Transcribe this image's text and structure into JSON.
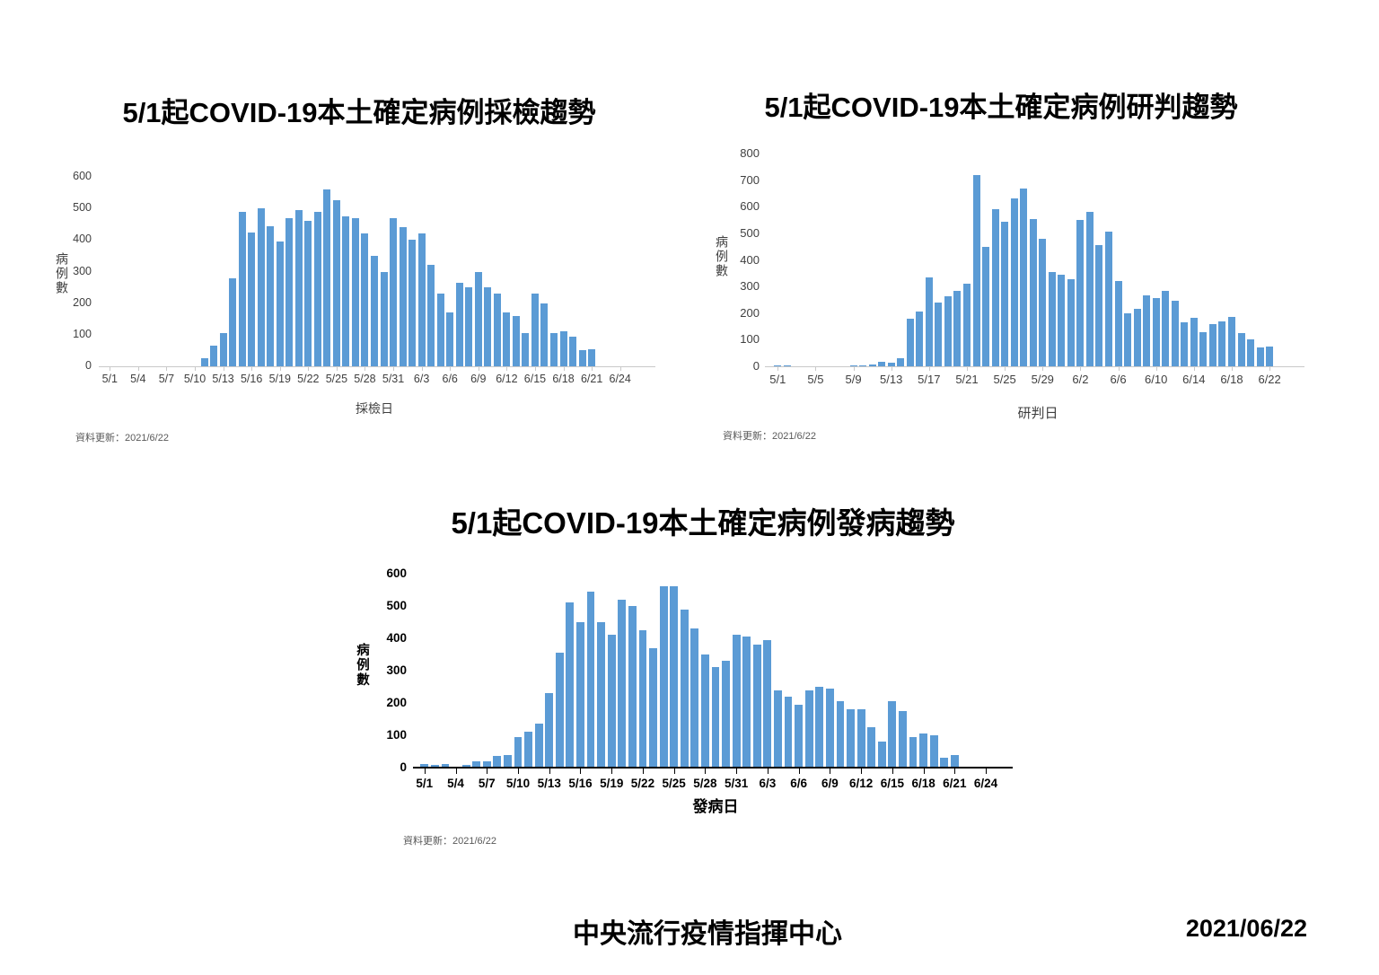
{
  "footer": {
    "org": "中央流行疫情指揮中心",
    "date": "2021/06/22"
  },
  "chart_data": [
    {
      "type": "bar",
      "title": "5/1起COVID-19本土確定病例採檢趨勢",
      "xlabel": "採檢日",
      "ylabel": "病例數",
      "note": "資料更新：2021/6/22",
      "ylim": [
        0,
        600
      ],
      "ytick_step": 100,
      "grid": false,
      "legend": "none",
      "bar_color": "#5b9bd5",
      "axis_slots": 57,
      "xtick_every": 3,
      "xtick_labels": [
        "5/1",
        "5/4",
        "5/7",
        "5/10",
        "5/13",
        "5/16",
        "5/19",
        "5/22",
        "5/25",
        "5/28",
        "5/31",
        "6/3",
        "6/6",
        "6/9",
        "6/12",
        "6/15",
        "6/18",
        "6/21",
        "6/24"
      ],
      "categories": [
        "5/1",
        "5/2",
        "5/3",
        "5/4",
        "5/5",
        "5/6",
        "5/7",
        "5/8",
        "5/9",
        "5/10",
        "5/11",
        "5/12",
        "5/13",
        "5/14",
        "5/15",
        "5/16",
        "5/17",
        "5/18",
        "5/19",
        "5/20",
        "5/21",
        "5/22",
        "5/23",
        "5/24",
        "5/25",
        "5/26",
        "5/27",
        "5/28",
        "5/29",
        "5/30",
        "5/31",
        "6/1",
        "6/2",
        "6/3",
        "6/4",
        "6/5",
        "6/6",
        "6/7",
        "6/8",
        "6/9",
        "6/10",
        "6/11",
        "6/12",
        "6/13",
        "6/14",
        "6/15",
        "6/16",
        "6/17",
        "6/18",
        "6/19",
        "6/20",
        "6/21"
      ],
      "values": [
        0,
        0,
        0,
        0,
        0,
        0,
        0,
        0,
        0,
        0,
        25,
        65,
        105,
        280,
        490,
        425,
        500,
        445,
        395,
        470,
        495,
        460,
        490,
        560,
        525,
        475,
        470,
        420,
        350,
        300,
        470,
        440,
        400,
        420,
        320,
        230,
        170,
        265,
        250,
        300,
        250,
        230,
        170,
        160,
        105,
        230,
        200,
        105,
        110,
        95,
        50,
        55
      ]
    },
    {
      "type": "bar",
      "title": "5/1起COVID-19本土確定病例研判趨勢",
      "xlabel": "研判日",
      "ylabel": "病例數",
      "note": "資料更新：2021/6/22",
      "ylim": [
        0,
        800
      ],
      "ytick_step": 100,
      "grid": false,
      "legend": "none",
      "bar_color": "#5b9bd5",
      "axis_slots": 56,
      "xtick_every": 4,
      "xtick_labels": [
        "5/1",
        "5/5",
        "5/9",
        "5/13",
        "5/17",
        "5/21",
        "5/25",
        "5/29",
        "6/2",
        "6/6",
        "6/10",
        "6/14",
        "6/18",
        "6/22"
      ],
      "categories": [
        "5/1",
        "5/2",
        "5/3",
        "5/4",
        "5/5",
        "5/6",
        "5/7",
        "5/8",
        "5/9",
        "5/10",
        "5/11",
        "5/12",
        "5/13",
        "5/14",
        "5/15",
        "5/16",
        "5/17",
        "5/18",
        "5/19",
        "5/20",
        "5/21",
        "5/22",
        "5/23",
        "5/24",
        "5/25",
        "5/26",
        "5/27",
        "5/28",
        "5/29",
        "5/30",
        "5/31",
        "6/1",
        "6/2",
        "6/3",
        "6/4",
        "6/5",
        "6/6",
        "6/7",
        "6/8",
        "6/9",
        "6/10",
        "6/11",
        "6/12",
        "6/13",
        "6/14",
        "6/15",
        "6/16",
        "6/17",
        "6/18",
        "6/19",
        "6/20",
        "6/21",
        "6/22"
      ],
      "values": [
        1,
        3,
        0,
        0,
        0,
        0,
        0,
        0,
        2,
        5,
        8,
        16,
        13,
        29,
        180,
        205,
        333,
        240,
        265,
        285,
        312,
        720,
        450,
        590,
        542,
        632,
        667,
        553,
        481,
        356,
        345,
        327,
        549,
        580,
        456,
        506,
        320,
        200,
        215,
        267,
        256,
        284,
        245,
        167,
        184,
        128,
        160,
        170,
        187,
        125,
        102,
        70,
        74
      ]
    },
    {
      "type": "bar",
      "title": "5/1起COVID-19本土確定病例發病趨勢",
      "xlabel": "發病日",
      "ylabel": "病例數",
      "note": "資料更新：2021/6/22",
      "ylim": [
        0,
        600
      ],
      "ytick_step": 100,
      "grid": false,
      "legend": "none",
      "bar_color": "#5b9bd5",
      "axis_slots": 57,
      "xtick_every": 3,
      "xtick_labels": [
        "5/1",
        "5/4",
        "5/7",
        "5/10",
        "5/13",
        "5/16",
        "5/19",
        "5/22",
        "5/25",
        "5/28",
        "5/31",
        "6/3",
        "6/6",
        "6/9",
        "6/12",
        "6/15",
        "6/18",
        "6/21",
        "6/24"
      ],
      "categories": [
        "5/1",
        "5/2",
        "5/3",
        "5/4",
        "5/5",
        "5/6",
        "5/7",
        "5/8",
        "5/9",
        "5/10",
        "5/11",
        "5/12",
        "5/13",
        "5/14",
        "5/15",
        "5/16",
        "5/17",
        "5/18",
        "5/19",
        "5/20",
        "5/21",
        "5/22",
        "5/23",
        "5/24",
        "5/25",
        "5/26",
        "5/27",
        "5/28",
        "5/29",
        "5/30",
        "5/31",
        "6/1",
        "6/2",
        "6/3",
        "6/4",
        "6/5",
        "6/6",
        "6/7",
        "6/8",
        "6/9",
        "6/10",
        "6/11",
        "6/12",
        "6/13",
        "6/14",
        "6/15",
        "6/16",
        "6/17",
        "6/18",
        "6/19",
        "6/20",
        "6/21"
      ],
      "values": [
        10,
        8,
        10,
        2,
        8,
        20,
        20,
        35,
        40,
        95,
        110,
        135,
        230,
        355,
        510,
        450,
        545,
        450,
        410,
        520,
        500,
        425,
        370,
        560,
        560,
        490,
        430,
        350,
        310,
        330,
        410,
        405,
        380,
        395,
        240,
        220,
        195,
        240,
        250,
        245,
        205,
        180,
        180,
        125,
        80,
        205,
        175,
        95,
        105,
        100,
        30,
        40
      ]
    }
  ]
}
